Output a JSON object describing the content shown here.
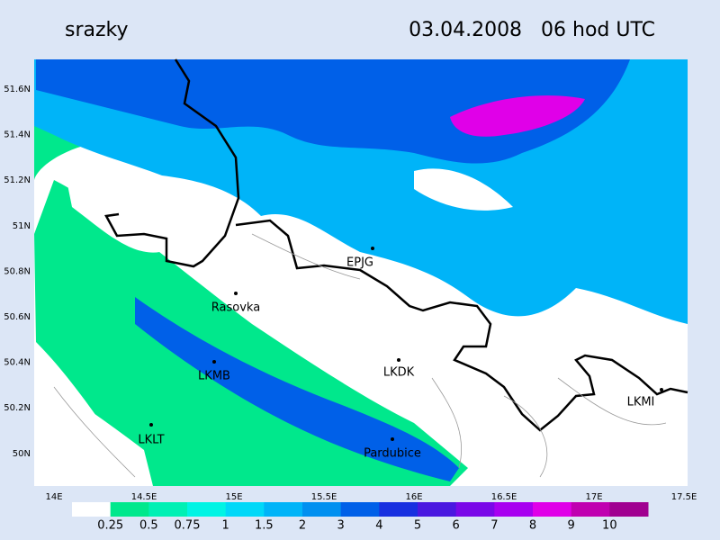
{
  "header": {
    "title": "srazky",
    "datetime": "03.04.2008   06 hod UTC"
  },
  "lat_labels": [
    "51.6N",
    "51.4N",
    "51.2N",
    "51N",
    "50.8N",
    "50.6N",
    "50.4N",
    "50.2N",
    "50N"
  ],
  "lon_labels": [
    "14E",
    "14.5E",
    "15E",
    "15.5E",
    "16E",
    "16.5E",
    "17E",
    "17.5E"
  ],
  "stations": [
    "EPJG",
    "Rasovka",
    "LKMB",
    "LKDK",
    "LKMI",
    "LKLT",
    "Pardubice"
  ],
  "legend": {
    "labels": [
      "0.25",
      "0.5",
      "0.75",
      "1",
      "1.5",
      "2",
      "3",
      "4",
      "5",
      "6",
      "7",
      "8",
      "9",
      "10"
    ],
    "colors": [
      "#ffffff",
      "#00e88c",
      "#00f0b4",
      "#00f4e4",
      "#00d8f8",
      "#00b4f8",
      "#0090f0",
      "#0060e8",
      "#1830e0",
      "#4a18e0",
      "#7a08e8",
      "#a800f0",
      "#e000e8",
      "#c000b0",
      "#a00090"
    ]
  }
}
